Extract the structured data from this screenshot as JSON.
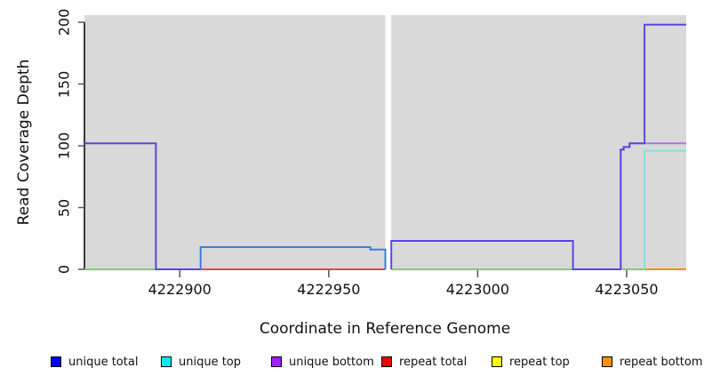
{
  "chart_data": {
    "type": "line",
    "title": "",
    "xlabel": "Coordinate in Reference Genome",
    "ylabel": "Read Coverage Depth",
    "xlim": [
      4222868,
      4223070
    ],
    "ylim": [
      0,
      205.8
    ],
    "x_ticks": [
      4222900,
      4222950,
      4223000,
      4223050
    ],
    "y_ticks": [
      0,
      50,
      100,
      150,
      200
    ],
    "grid": false,
    "plot_bg_color": "#D9D9D9",
    "gap_region_x": [
      4222969,
      4222971
    ],
    "legend_position": "bottom",
    "legend": [
      {
        "label": "unique total",
        "color": "#0000F5"
      },
      {
        "label": "unique top",
        "color": "#00EEEE"
      },
      {
        "label": "unique bottom",
        "color": "#A020F0"
      },
      {
        "label": "repeat total",
        "color": "#EE0000"
      },
      {
        "label": "repeat top",
        "color": "#FFFF00"
      },
      {
        "label": "repeat bottom",
        "color": "#F59300"
      }
    ],
    "series": [
      {
        "name": "zero-line-left-green",
        "color": "#82C882",
        "points": [
          [
            4222868,
            0
          ],
          [
            4222892,
            0
          ]
        ]
      },
      {
        "name": "zero-line-mid-right-green",
        "color": "#82C882",
        "points": [
          [
            4222971,
            0
          ],
          [
            4223056,
            0
          ]
        ]
      },
      {
        "name": "repeat-total-zero-line",
        "color": "#D9485E",
        "points": [
          [
            4222907,
            0
          ],
          [
            4222969,
            0
          ]
        ]
      },
      {
        "name": "repeat-bottom-zero-line",
        "color": "#F59414",
        "points": [
          [
            4223056,
            0
          ],
          [
            4223070,
            0
          ]
        ]
      },
      {
        "name": "unique-top",
        "color": "#76E8DE",
        "points": [
          [
            4223056,
            0
          ],
          [
            4223056,
            96
          ],
          [
            4223070,
            96
          ]
        ]
      },
      {
        "name": "unique-bottom",
        "color": "#A878E8",
        "points": [
          [
            4223048,
            0
          ],
          [
            4223048,
            97
          ],
          [
            4223049,
            97
          ],
          [
            4223049,
            99
          ],
          [
            4223051,
            99
          ],
          [
            4223051,
            102
          ],
          [
            4223070,
            102
          ]
        ]
      },
      {
        "name": "unique-total-left",
        "color": "#5B46E3",
        "points": [
          [
            4222868,
            102
          ],
          [
            4222892,
            102
          ],
          [
            4222892,
            0
          ],
          [
            4222907,
            0
          ]
        ]
      },
      {
        "name": "unique-total-mid-left",
        "color": "#377FE3",
        "points": [
          [
            4222907,
            0
          ],
          [
            4222907,
            18
          ],
          [
            4222964,
            18
          ],
          [
            4222964,
            16
          ],
          [
            4222969,
            16
          ],
          [
            4222969,
            0
          ]
        ]
      },
      {
        "name": "unique-total-mid-right",
        "color": "#5B46E3",
        "points": [
          [
            4222971,
            0
          ],
          [
            4222971,
            23
          ],
          [
            4223032,
            23
          ],
          [
            4223032,
            0
          ],
          [
            4223048,
            0
          ]
        ]
      },
      {
        "name": "unique-total-right",
        "color": "#5B46E3",
        "points": [
          [
            4223048,
            0
          ],
          [
            4223048,
            97
          ],
          [
            4223049,
            97
          ],
          [
            4223049,
            99
          ],
          [
            4223051,
            99
          ],
          [
            4223051,
            102
          ],
          [
            4223056,
            102
          ],
          [
            4223056,
            198
          ],
          [
            4223070,
            198
          ]
        ]
      }
    ]
  }
}
